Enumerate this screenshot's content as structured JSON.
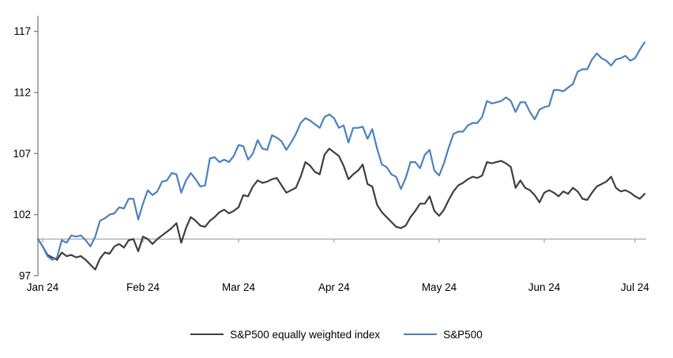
{
  "chart_data": {
    "type": "line",
    "title": "",
    "xlabel": "",
    "ylabel": "",
    "x_axis": {
      "tick_labels": [
        "Jan 24",
        "Feb 24",
        "Mar 24",
        "Apr 24",
        "May 24",
        "Jun 24",
        "Jul 24"
      ],
      "baseline_value": 100
    },
    "y_axis": {
      "ticks": [
        97,
        102,
        107,
        112,
        117
      ],
      "ylim": [
        97,
        117
      ],
      "grid": false
    },
    "legend_position": "bottom-center",
    "series": [
      {
        "name": "S&P500 equally weighted index",
        "color": "#3f3f3f",
        "values": [
          100.0,
          99.4,
          98.7,
          98.5,
          98.3,
          98.9,
          98.6,
          98.7,
          98.5,
          98.6,
          98.3,
          97.9,
          97.5,
          98.4,
          98.9,
          98.8,
          99.4,
          99.6,
          99.3,
          99.9,
          100.0,
          99.0,
          100.2,
          100.0,
          99.6,
          100.0,
          100.3,
          100.6,
          100.9,
          101.3,
          99.7,
          100.9,
          101.8,
          101.5,
          101.1,
          101.0,
          101.5,
          101.8,
          102.2,
          102.4,
          102.1,
          102.3,
          102.6,
          103.6,
          103.5,
          104.3,
          104.8,
          104.6,
          104.7,
          104.9,
          105.0,
          104.4,
          103.8,
          104.0,
          104.2,
          105.1,
          106.3,
          106.0,
          105.5,
          105.3,
          106.9,
          107.4,
          107.1,
          106.8,
          106.0,
          104.9,
          105.3,
          105.6,
          106.1,
          104.5,
          104.3,
          102.8,
          102.2,
          101.8,
          101.4,
          101.0,
          100.9,
          101.1,
          101.8,
          102.3,
          102.9,
          102.9,
          103.5,
          102.3,
          101.9,
          102.4,
          103.2,
          103.9,
          104.4,
          104.6,
          104.9,
          105.1,
          105.0,
          105.2,
          106.3,
          106.2,
          106.3,
          106.4,
          106.2,
          105.9,
          104.2,
          104.8,
          104.2,
          104.0,
          103.6,
          103.0,
          103.8,
          104.0,
          103.8,
          103.5,
          103.9,
          103.7,
          104.2,
          103.9,
          103.3,
          103.2,
          103.8,
          104.3,
          104.5,
          104.7,
          105.1,
          104.2,
          103.9,
          104.0,
          103.8,
          103.5,
          103.3,
          103.7
        ]
      },
      {
        "name": "S&P500",
        "color": "#4e81bd",
        "values": [
          100.0,
          99.4,
          98.6,
          98.3,
          98.5,
          99.9,
          99.7,
          100.3,
          100.2,
          100.3,
          99.9,
          99.4,
          100.2,
          101.5,
          101.7,
          102.0,
          102.1,
          102.6,
          102.5,
          103.3,
          103.3,
          101.6,
          102.9,
          104.0,
          103.6,
          103.9,
          104.7,
          104.8,
          105.4,
          105.3,
          103.8,
          104.8,
          105.4,
          104.9,
          104.3,
          104.4,
          106.6,
          106.7,
          106.3,
          106.5,
          106.3,
          106.8,
          107.7,
          107.6,
          106.5,
          107.0,
          108.1,
          107.4,
          107.3,
          108.5,
          108.3,
          108.0,
          107.3,
          107.9,
          108.6,
          109.5,
          109.9,
          109.7,
          109.4,
          109.1,
          110.0,
          110.2,
          109.9,
          109.1,
          109.3,
          107.9,
          109.1,
          109.1,
          109.2,
          108.2,
          109.0,
          107.4,
          106.1,
          105.9,
          105.3,
          105.1,
          104.1,
          105.0,
          106.3,
          106.3,
          105.8,
          106.9,
          107.3,
          105.6,
          105.2,
          106.2,
          107.5,
          108.6,
          108.8,
          108.8,
          109.3,
          109.5,
          109.5,
          110.0,
          111.3,
          111.1,
          111.2,
          111.3,
          111.6,
          111.3,
          110.4,
          111.2,
          111.2,
          110.4,
          109.8,
          110.6,
          110.8,
          110.9,
          112.2,
          112.2,
          112.1,
          112.4,
          112.7,
          113.7,
          113.9,
          113.9,
          114.7,
          115.2,
          114.8,
          114.6,
          114.2,
          114.7,
          114.8,
          115.0,
          114.6,
          114.8,
          115.5,
          116.1
        ]
      }
    ],
    "axis_color": "#7f7f7f",
    "baseline_color": "#a6a6a6"
  }
}
